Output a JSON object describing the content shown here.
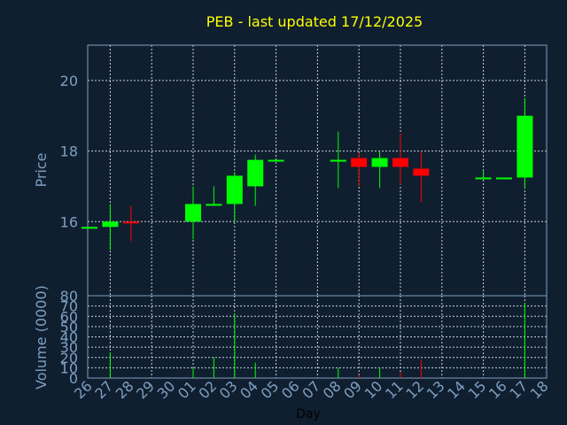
{
  "chart_data": {
    "type": "candlestick",
    "title": "PEB - last updated 17/12/2025",
    "xlabel": "Day",
    "price_panel": {
      "ylabel": "Price",
      "ylim": [
        13.9,
        21.0
      ],
      "yticks": [
        "16",
        "18",
        "20"
      ],
      "grid": true
    },
    "volume_panel": {
      "ylabel": "Volume (0000)",
      "ylim": [
        0,
        80
      ],
      "yticks": [
        "0",
        "10",
        "20",
        "30",
        "40",
        "50",
        "60",
        "70",
        "80"
      ],
      "grid": true
    },
    "x_labels": [
      "26",
      "27",
      "28",
      "29",
      "30",
      "01",
      "02",
      "03",
      "04",
      "05",
      "06",
      "07",
      "08",
      "09",
      "10",
      "11",
      "12",
      "13",
      "14",
      "15",
      "16",
      "17",
      "18"
    ],
    "candles": [
      {
        "idx": 0,
        "open": 15.85,
        "high": 15.85,
        "low": 15.85,
        "close": 15.85,
        "volume": 0
      },
      {
        "idx": 1,
        "open": 15.85,
        "high": 16.5,
        "low": 15.2,
        "close": 16.0,
        "volume": 25
      },
      {
        "idx": 2,
        "open": 16.0,
        "high": 16.45,
        "low": 15.45,
        "close": 15.95,
        "volume": 0
      },
      {
        "idx": 5,
        "open": 16.0,
        "high": 17.0,
        "low": 15.5,
        "close": 16.5,
        "volume": 10
      },
      {
        "idx": 6,
        "open": 16.45,
        "high": 17.0,
        "low": 16.45,
        "close": 16.5,
        "volume": 20
      },
      {
        "idx": 7,
        "open": 16.5,
        "high": 17.4,
        "low": 16.0,
        "close": 17.3,
        "volume": 63
      },
      {
        "idx": 8,
        "open": 17.0,
        "high": 17.9,
        "low": 16.45,
        "close": 17.75,
        "volume": 15
      },
      {
        "idx": 9,
        "open": 17.75,
        "high": 17.75,
        "low": 17.75,
        "close": 17.75,
        "volume": 0
      },
      {
        "idx": 12,
        "open": 17.75,
        "high": 18.55,
        "low": 16.95,
        "close": 17.75,
        "volume": 10
      },
      {
        "idx": 13,
        "open": 17.8,
        "high": 17.95,
        "low": 17.0,
        "close": 17.55,
        "volume": 3
      },
      {
        "idx": 14,
        "open": 17.55,
        "high": 18.0,
        "low": 16.95,
        "close": 17.8,
        "volume": 10
      },
      {
        "idx": 15,
        "open": 17.8,
        "high": 18.5,
        "low": 17.05,
        "close": 17.55,
        "volume": 6
      },
      {
        "idx": 16,
        "open": 17.5,
        "high": 18.0,
        "low": 16.55,
        "close": 17.3,
        "volume": 18
      },
      {
        "idx": 19,
        "open": 17.25,
        "high": 17.45,
        "low": 17.25,
        "close": 17.25,
        "volume": 0
      },
      {
        "idx": 20,
        "open": 17.25,
        "high": 17.25,
        "low": 17.25,
        "close": 17.25,
        "volume": 0
      },
      {
        "idx": 21,
        "open": 17.25,
        "high": 19.5,
        "low": 16.95,
        "close": 19.0,
        "volume": 73
      }
    ],
    "colors": {
      "background": "#0f1f30",
      "up": "#00ff00",
      "down": "#ff0000",
      "frame": "#7f9fc0",
      "grid": "#c8d2dc",
      "title": "#ffff00"
    }
  }
}
